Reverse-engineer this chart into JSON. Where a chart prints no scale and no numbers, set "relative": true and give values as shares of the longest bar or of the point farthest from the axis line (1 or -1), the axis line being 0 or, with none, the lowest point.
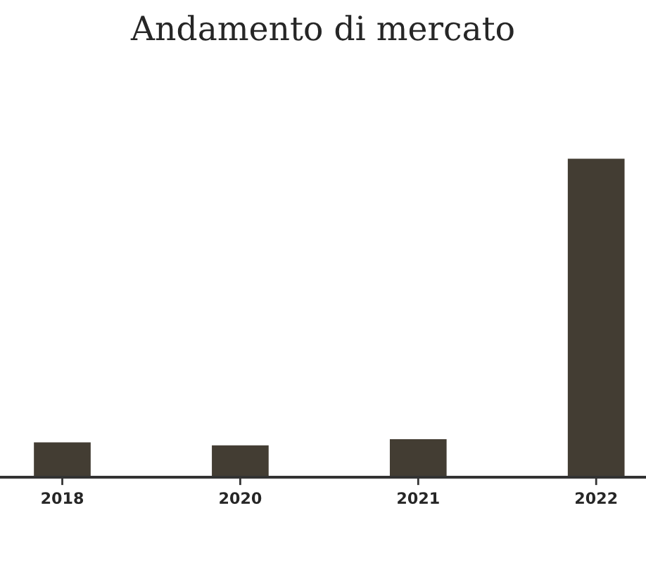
{
  "chart_data": {
    "type": "bar",
    "title": "Andamento di mercato",
    "relative": true,
    "categories": [
      "2018",
      "2020",
      "2021",
      "2022"
    ],
    "values": [
      0.112,
      0.103,
      0.122,
      1
    ],
    "color": "#433d33",
    "grid": false,
    "legend": false
  }
}
